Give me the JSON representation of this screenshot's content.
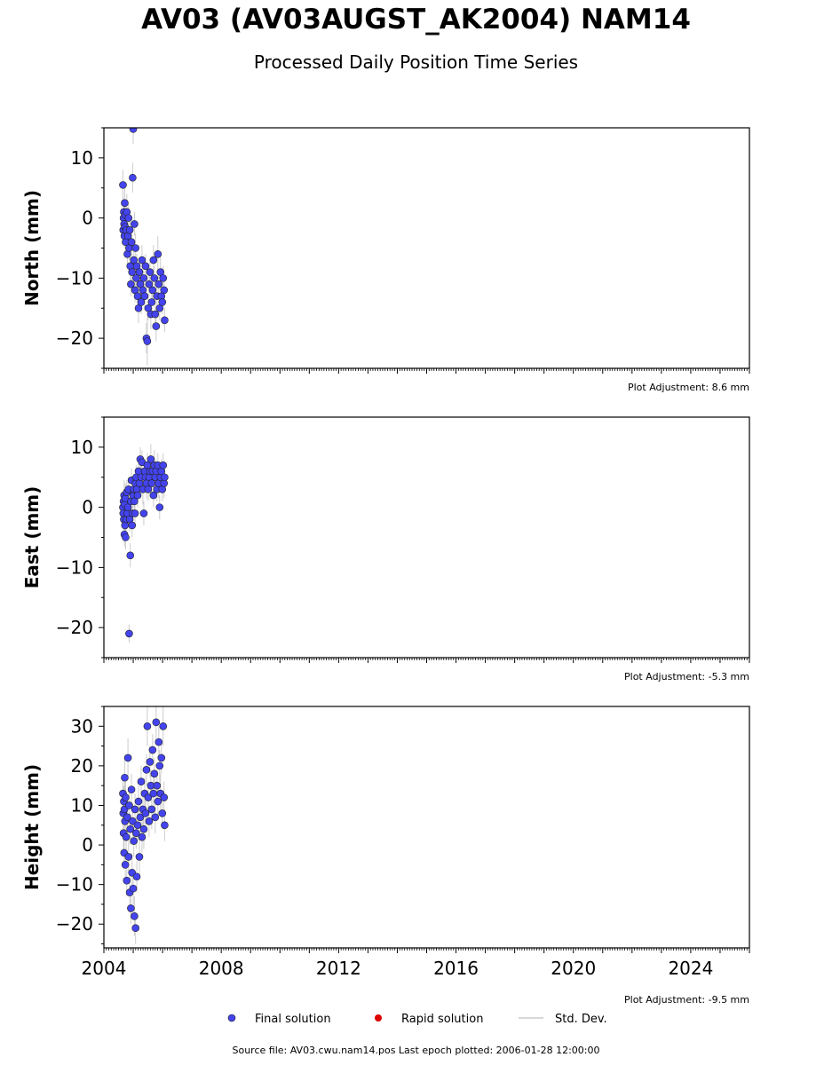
{
  "header": {
    "title": "AV03 (AV03AUGST_AK2004) NAM14",
    "subtitle": "Processed Daily Position Time Series"
  },
  "legend": {
    "final": "Final solution",
    "rapid": "Rapid solution",
    "stddev": "Std. Dev."
  },
  "footer": {
    "source": "Source file: AV03.cwu.nam14.pos  Last epoch plotted: 2006-01-28 12:00:00"
  },
  "colors": {
    "final": "#4444ee",
    "rapid": "#dd0000",
    "stddev": "#aaaaaa"
  },
  "chart_data": [
    {
      "type": "scatter",
      "ylabel": "North (mm)",
      "adjustment": "Plot Adjustment: 8.6 mm",
      "xlim": [
        2004,
        2026
      ],
      "ylim": [
        -25,
        15
      ],
      "yticks": [
        10,
        0,
        -10,
        -20
      ],
      "ytick_labels": [
        "10",
        "0",
        "−10",
        "−20"
      ],
      "series": [
        {
          "name": "Final solution",
          "x": [
            2004.65,
            2004.66,
            2004.67,
            2004.68,
            2004.69,
            2004.7,
            2004.71,
            2004.72,
            2004.73,
            2004.74,
            2004.76,
            2004.78,
            2004.8,
            2004.82,
            2004.84,
            2004.86,
            2004.88,
            2004.9,
            2004.92,
            2004.94,
            2004.96,
            2004.98,
            2005.0,
            2005.02,
            2005.04,
            2005.06,
            2005.08,
            2005.1,
            2005.12,
            2005.15,
            2005.18,
            2005.21,
            2005.24,
            2005.27,
            2005.3,
            2005.33,
            2005.36,
            2005.39,
            2005.42,
            2005.45,
            2005.48,
            2005.51,
            2005.54,
            2005.57,
            2005.6,
            2005.63,
            2005.66,
            2005.69,
            2005.72,
            2005.75,
            2005.78,
            2005.81,
            2005.84,
            2005.87,
            2005.9,
            2005.93,
            2005.96,
            2005.99,
            2006.02,
            2006.05,
            2006.07
          ],
          "y": [
            5.5,
            -2,
            0,
            1,
            -1,
            -3,
            2.5,
            -1.5,
            0.5,
            -4,
            -2,
            1,
            -6,
            -3,
            0,
            -5,
            -2,
            -8,
            -11,
            -4,
            -9,
            6.7,
            14.8,
            -7,
            -1,
            -12,
            -5,
            -10,
            -8,
            -13,
            -15,
            -9,
            -11,
            -14,
            -7,
            -12,
            -10,
            -13,
            -8,
            -20,
            -20.5,
            -15,
            -11,
            -9,
            -16,
            -14,
            -12,
            -7,
            -10,
            -16,
            -18,
            -13,
            -6,
            -11,
            -15,
            -9,
            -13,
            -14,
            -10,
            -12,
            -17
          ],
          "yerr": [
            2.5,
            1.5,
            2,
            2,
            1.5,
            2,
            2.5,
            2,
            1.5,
            2,
            2.5,
            3,
            2,
            2,
            2.5,
            2,
            3,
            2.5,
            2,
            2,
            3,
            2.5,
            2.5,
            3,
            2,
            2,
            2.5,
            2,
            2,
            2,
            2.5,
            2,
            2,
            2,
            2.5,
            2,
            2,
            2,
            2,
            2.5,
            4,
            2,
            2,
            2,
            2.5,
            2,
            2,
            2.5,
            2,
            2,
            2.5,
            2,
            3,
            2,
            2,
            2.5,
            2,
            2,
            2,
            2,
            2
          ]
        }
      ]
    },
    {
      "type": "scatter",
      "ylabel": "East (mm)",
      "adjustment": "Plot Adjustment: -5.3 mm",
      "xlim": [
        2004,
        2026
      ],
      "ylim": [
        -25,
        15
      ],
      "yticks": [
        10,
        0,
        -10,
        -20
      ],
      "ytick_labels": [
        "10",
        "0",
        "−10",
        "−20"
      ],
      "series": [
        {
          "name": "Final solution",
          "x": [
            2004.65,
            2004.66,
            2004.67,
            2004.68,
            2004.69,
            2004.7,
            2004.71,
            2004.72,
            2004.73,
            2004.74,
            2004.76,
            2004.78,
            2004.8,
            2004.82,
            2004.84,
            2004.86,
            2004.88,
            2004.9,
            2004.92,
            2004.94,
            2004.96,
            2004.98,
            2005.0,
            2005.02,
            2005.04,
            2005.06,
            2005.08,
            2005.1,
            2005.12,
            2005.15,
            2005.18,
            2005.21,
            2005.24,
            2005.27,
            2005.3,
            2005.33,
            2005.36,
            2005.39,
            2005.42,
            2005.45,
            2005.48,
            2005.51,
            2005.54,
            2005.57,
            2005.6,
            2005.63,
            2005.66,
            2005.69,
            2005.72,
            2005.75,
            2005.78,
            2005.81,
            2005.84,
            2005.87,
            2005.9,
            2005.93,
            2005.96,
            2005.99,
            2006.02,
            2006.05,
            2006.07
          ],
          "y": [
            0,
            -1,
            1,
            -2,
            2,
            -4.5,
            0.5,
            -3,
            1.5,
            -5,
            -2,
            2.5,
            -1,
            0,
            3,
            -21,
            -2,
            -8,
            1,
            4.5,
            -3,
            -1,
            2,
            3,
            1,
            -1,
            4,
            5,
            3,
            2,
            6,
            4,
            8,
            5,
            7.5,
            3,
            -1,
            6,
            5,
            4,
            7,
            3,
            5,
            6,
            8,
            4,
            6,
            2,
            7,
            5,
            6,
            3,
            7,
            4,
            0,
            5,
            6,
            3,
            7,
            4,
            5
          ],
          "yerr": [
            2,
            2,
            2,
            2,
            2.5,
            2,
            2,
            2,
            2.5,
            2,
            2,
            2,
            2.5,
            2,
            2,
            1.5,
            2,
            2,
            2.5,
            2,
            2,
            2.5,
            2,
            2,
            2,
            2.5,
            2,
            2,
            2,
            2,
            2,
            2.5,
            2,
            2,
            2,
            2.5,
            2,
            2,
            2,
            2.5,
            2,
            2,
            2,
            2,
            2.5,
            2,
            2,
            2,
            2.5,
            2,
            2,
            2,
            2,
            2.5,
            2,
            2,
            2,
            2,
            2,
            2.5,
            2
          ]
        }
      ]
    },
    {
      "type": "scatter",
      "ylabel": "Height (mm)",
      "adjustment": "Plot Adjustment: -9.5 mm",
      "xlim": [
        2004,
        2026
      ],
      "ylim": [
        -26,
        35
      ],
      "yticks": [
        30,
        20,
        10,
        0,
        -10,
        -20
      ],
      "ytick_labels": [
        "30",
        "20",
        "10",
        "0",
        "−10",
        "−20"
      ],
      "xticks": [
        2004,
        2008,
        2012,
        2016,
        2020,
        2024
      ],
      "xtick_labels": [
        "2004",
        "2008",
        "2012",
        "2016",
        "2020",
        "2024"
      ],
      "series": [
        {
          "name": "Final solution",
          "x": [
            2004.65,
            2004.66,
            2004.67,
            2004.68,
            2004.69,
            2004.7,
            2004.71,
            2004.72,
            2004.73,
            2004.74,
            2004.76,
            2004.78,
            2004.8,
            2004.82,
            2004.84,
            2004.86,
            2004.88,
            2004.9,
            2004.92,
            2004.94,
            2004.96,
            2004.98,
            2005.0,
            2005.02,
            2005.04,
            2005.06,
            2005.08,
            2005.1,
            2005.12,
            2005.15,
            2005.18,
            2005.21,
            2005.24,
            2005.27,
            2005.3,
            2005.33,
            2005.36,
            2005.39,
            2005.42,
            2005.45,
            2005.48,
            2005.51,
            2005.54,
            2005.57,
            2005.6,
            2005.63,
            2005.66,
            2005.69,
            2005.72,
            2005.75,
            2005.78,
            2005.81,
            2005.84,
            2005.87,
            2005.9,
            2005.93,
            2005.96,
            2005.99,
            2006.02,
            2006.05,
            2006.07
          ],
          "y": [
            13,
            8,
            3,
            11,
            -2,
            9,
            17,
            6,
            -5,
            12,
            2,
            -9,
            7,
            22,
            -3,
            10,
            -12,
            4,
            -16,
            14,
            -7,
            6,
            -11,
            1,
            -18,
            9,
            -21,
            3,
            -8,
            5,
            11,
            -3,
            7,
            16,
            2,
            9,
            4,
            13,
            8,
            19,
            30,
            12,
            6,
            21,
            15,
            9,
            24,
            13,
            18,
            7,
            31,
            15,
            11,
            26,
            20,
            13,
            22,
            8,
            30,
            12,
            5
          ],
          "yerr": [
            4,
            4,
            4,
            4,
            4,
            4,
            5,
            4,
            4,
            4,
            5,
            4,
            4,
            5,
            4,
            4,
            5,
            4,
            4,
            4,
            5,
            4,
            4,
            4,
            5,
            4,
            4,
            4,
            4,
            4,
            4,
            5,
            4,
            4,
            4,
            4,
            5,
            4,
            4,
            4,
            5,
            4,
            4,
            4,
            4,
            5,
            4,
            4,
            4,
            4,
            5,
            4,
            4,
            4,
            4,
            5,
            4,
            4,
            5,
            4,
            4
          ]
        }
      ]
    }
  ]
}
